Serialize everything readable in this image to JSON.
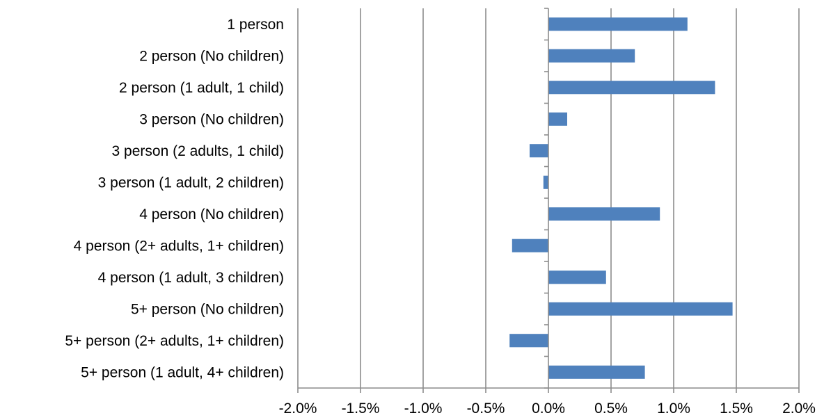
{
  "chart_data": {
    "type": "bar",
    "orientation": "horizontal",
    "categories": [
      "1 person",
      "2 person (No children)",
      "2 person (1 adult, 1 child)",
      "3 person (No children)",
      "3 person (2 adults, 1 child)",
      "3 person (1 adult, 2 children)",
      "4 person (No children)",
      "4 person (2+ adults, 1+ children)",
      "4 person (1 adult, 3 children)",
      "5+ person (No children)",
      "5+ person (2+ adults, 1+ children)",
      "5+ person (1 adult, 4+ children)"
    ],
    "values": [
      1.11,
      0.69,
      1.33,
      0.15,
      -0.15,
      -0.04,
      0.89,
      -0.29,
      0.46,
      1.47,
      -0.31,
      0.77
    ],
    "xlim": [
      -2.0,
      2.0
    ],
    "xticks": [
      -2.0,
      -1.5,
      -1.0,
      -0.5,
      0.0,
      0.5,
      1.0,
      1.5,
      2.0
    ],
    "xtick_labels": [
      "-2.0%",
      "-1.5%",
      "-1.0%",
      "-0.5%",
      "0.0%",
      "0.5%",
      "1.0%",
      "1.5%",
      "2.0%"
    ],
    "grid": "vertical",
    "legend": "none",
    "bar_color": "#4f81bd"
  }
}
